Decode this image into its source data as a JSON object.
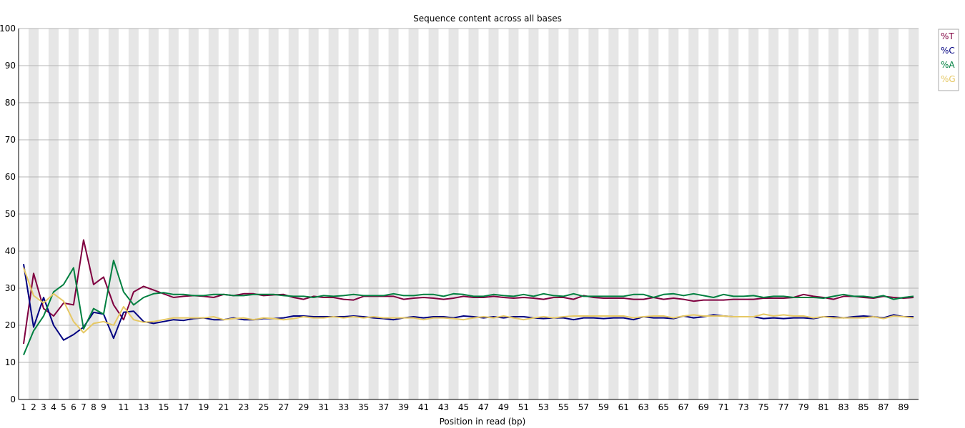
{
  "chart_data": {
    "type": "line",
    "title": "Sequence content across all bases",
    "xlabel": "Position in read (bp)",
    "ylabel": "",
    "ylim": [
      0,
      100
    ],
    "yticks": [
      0,
      10,
      20,
      30,
      40,
      50,
      60,
      70,
      80,
      90,
      100
    ],
    "x": [
      1,
      2,
      3,
      4,
      5,
      6,
      7,
      8,
      9,
      10,
      11,
      12,
      13,
      14,
      15,
      16,
      17,
      18,
      19,
      20,
      21,
      22,
      23,
      24,
      25,
      26,
      27,
      28,
      29,
      30,
      31,
      32,
      33,
      34,
      35,
      36,
      37,
      38,
      39,
      40,
      41,
      42,
      43,
      44,
      45,
      46,
      47,
      48,
      49,
      50,
      51,
      52,
      53,
      54,
      55,
      56,
      57,
      58,
      59,
      60,
      61,
      62,
      63,
      64,
      65,
      66,
      67,
      68,
      69,
      70,
      71,
      72,
      73,
      74,
      75,
      76,
      77,
      78,
      79,
      80,
      81,
      82,
      83,
      84,
      85,
      86,
      87,
      88,
      89,
      90
    ],
    "x_tick_labels": [
      "1",
      "2",
      "3",
      "4",
      "5",
      "6",
      "7",
      "8",
      "9",
      "11",
      "13",
      "15",
      "17",
      "19",
      "21",
      "23",
      "25",
      "27",
      "29",
      "31",
      "33",
      "35",
      "37",
      "39",
      "41",
      "43",
      "45",
      "47",
      "49",
      "51",
      "53",
      "55",
      "57",
      "59",
      "61",
      "63",
      "65",
      "67",
      "69",
      "71",
      "73",
      "75",
      "77",
      "79",
      "81",
      "83",
      "85",
      "87",
      "89"
    ],
    "grid": true,
    "legend_position": "top-right",
    "series": [
      {
        "name": "%T",
        "color": "#800040",
        "values": [
          15.0,
          34.0,
          24.5,
          22.5,
          26.0,
          25.5,
          43.0,
          31.0,
          33.0,
          25.5,
          21.5,
          29.0,
          30.5,
          29.5,
          28.5,
          27.5,
          27.8,
          28.0,
          27.8,
          27.5,
          28.3,
          28.0,
          28.5,
          28.5,
          28.0,
          28.2,
          28.3,
          27.5,
          27.0,
          27.8,
          27.5,
          27.5,
          27.0,
          26.8,
          27.8,
          27.8,
          27.8,
          27.8,
          27.0,
          27.3,
          27.5,
          27.3,
          27.0,
          27.3,
          27.8,
          27.5,
          27.5,
          27.8,
          27.5,
          27.3,
          27.5,
          27.3,
          27.0,
          27.5,
          27.5,
          27.0,
          28.0,
          27.5,
          27.3,
          27.3,
          27.3,
          27.0,
          27.0,
          27.5,
          27.0,
          27.3,
          27.0,
          26.5,
          26.8,
          26.8,
          26.8,
          27.0,
          27.0,
          27.0,
          27.3,
          27.3,
          27.3,
          27.5,
          28.3,
          27.8,
          27.5,
          27.0,
          27.8,
          27.8,
          27.5,
          27.3,
          27.8,
          27.5,
          27.3,
          27.5
        ]
      },
      {
        "name": "%C",
        "color": "#000080",
        "values": [
          36.5,
          19.5,
          27.5,
          20.0,
          16.0,
          17.5,
          19.5,
          23.5,
          23.0,
          16.5,
          23.5,
          23.8,
          21.0,
          20.5,
          21.0,
          21.5,
          21.3,
          21.8,
          22.0,
          21.5,
          21.5,
          22.0,
          21.5,
          21.5,
          21.8,
          21.8,
          22.0,
          22.5,
          22.5,
          22.3,
          22.3,
          22.3,
          22.3,
          22.5,
          22.3,
          22.0,
          21.8,
          21.5,
          22.0,
          22.3,
          22.0,
          22.3,
          22.3,
          22.0,
          22.5,
          22.3,
          22.0,
          22.3,
          22.0,
          22.3,
          22.3,
          22.0,
          21.8,
          22.0,
          22.0,
          21.5,
          22.0,
          22.0,
          21.8,
          22.0,
          22.0,
          21.5,
          22.3,
          22.0,
          22.0,
          21.8,
          22.5,
          22.0,
          22.3,
          22.8,
          22.5,
          22.3,
          22.3,
          22.3,
          21.8,
          22.0,
          21.8,
          22.0,
          22.0,
          21.8,
          22.3,
          22.3,
          22.0,
          22.3,
          22.5,
          22.3,
          22.0,
          22.8,
          22.3,
          22.3
        ]
      },
      {
        "name": "%A",
        "color": "#008040",
        "values": [
          12.0,
          18.5,
          22.5,
          29.0,
          31.0,
          35.5,
          19.0,
          24.5,
          23.0,
          37.5,
          29.0,
          25.5,
          27.5,
          28.5,
          28.8,
          28.3,
          28.3,
          28.0,
          28.0,
          28.3,
          28.3,
          28.0,
          28.0,
          28.3,
          28.3,
          28.3,
          28.0,
          27.8,
          27.8,
          27.5,
          28.0,
          27.8,
          28.0,
          28.3,
          28.0,
          28.0,
          28.0,
          28.5,
          28.0,
          28.0,
          28.3,
          28.3,
          27.8,
          28.5,
          28.3,
          27.8,
          27.8,
          28.3,
          28.0,
          27.8,
          28.3,
          27.8,
          28.5,
          28.0,
          27.8,
          28.5,
          27.8,
          27.8,
          27.8,
          27.8,
          27.8,
          28.3,
          28.3,
          27.5,
          28.3,
          28.5,
          28.0,
          28.5,
          28.0,
          27.5,
          28.3,
          27.8,
          27.8,
          28.0,
          27.5,
          27.8,
          27.8,
          27.5,
          27.5,
          27.5,
          27.3,
          27.8,
          28.3,
          27.8,
          27.8,
          27.5,
          28.0,
          27.0,
          27.5,
          27.8
        ]
      },
      {
        "name": "%G",
        "color": "#e6c864",
        "values": [
          35.5,
          28.0,
          26.0,
          28.5,
          26.5,
          21.0,
          18.0,
          20.5,
          21.0,
          20.0,
          25.0,
          21.5,
          20.8,
          21.0,
          21.5,
          22.0,
          22.0,
          22.0,
          22.0,
          22.3,
          21.5,
          21.8,
          22.0,
          21.5,
          22.0,
          21.8,
          21.5,
          21.8,
          22.3,
          22.0,
          22.0,
          22.3,
          22.0,
          22.3,
          22.0,
          22.3,
          22.0,
          22.0,
          22.0,
          22.0,
          21.5,
          22.0,
          22.0,
          21.8,
          21.5,
          22.0,
          22.3,
          22.0,
          22.5,
          22.0,
          21.5,
          22.0,
          22.3,
          22.0,
          22.3,
          22.5,
          22.5,
          22.5,
          22.5,
          22.5,
          22.5,
          22.0,
          22.3,
          22.5,
          22.5,
          22.0,
          22.5,
          22.8,
          22.5,
          22.5,
          22.5,
          22.3,
          22.3,
          22.3,
          23.0,
          22.5,
          22.8,
          22.5,
          22.5,
          22.0,
          22.3,
          22.0,
          22.0,
          22.0,
          22.0,
          22.3,
          21.8,
          22.5,
          22.3,
          22.0
        ]
      }
    ]
  }
}
